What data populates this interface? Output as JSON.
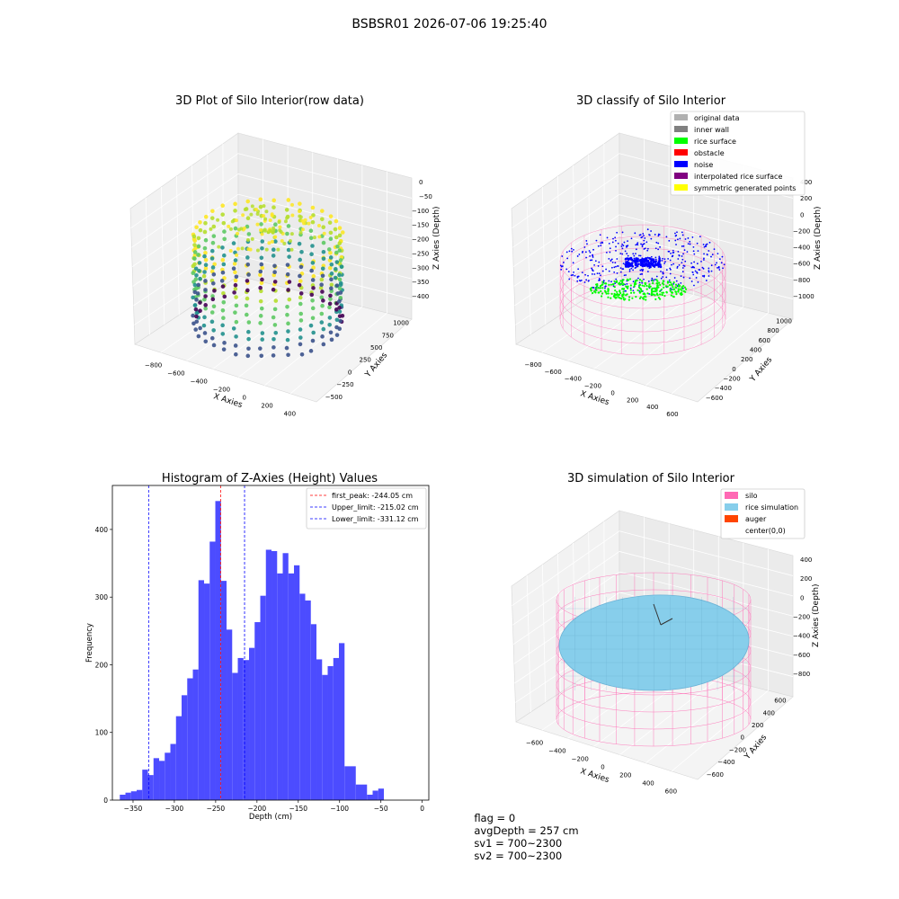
{
  "suptitle": "BSBSR01 2026-07-06 19:25:40",
  "footer": {
    "flag": "flag = 0",
    "avg_depth": "avgDepth = 257 cm",
    "sv1": "sv1 = 700~2300",
    "sv2": "sv2 = 700~2300"
  },
  "chart_data": [
    {
      "type": "scatter",
      "title": "3D Plot of Silo Interior(row data)",
      "xlabel": "X Axies",
      "ylabel": "Y Axies",
      "zlabel": "Z Axies (Depth)",
      "x_ticks": [
        "−800",
        "−600",
        "−400",
        "−200",
        "0",
        "200",
        "400"
      ],
      "y_ticks": [
        "−500",
        "−250",
        "0",
        "250",
        "500",
        "750",
        "1000"
      ],
      "z_ticks": [
        "0",
        "−50",
        "−100",
        "−150",
        "−200",
        "−250",
        "−300",
        "−350",
        "−400"
      ],
      "colormap": "viridis"
    },
    {
      "type": "scatter",
      "title": "3D classify of Silo Interior",
      "xlabel": "X Axies",
      "ylabel": "Y Axies",
      "zlabel": "Z Axies (Depth)",
      "x_ticks": [
        "−800",
        "−600",
        "−400",
        "−200",
        "0",
        "200",
        "400",
        "600"
      ],
      "y_ticks": [
        "−600",
        "−400",
        "−200",
        "0",
        "200",
        "400",
        "600",
        "800",
        "1000"
      ],
      "z_ticks": [
        "400",
        "200",
        "0",
        "−200",
        "−400",
        "−600",
        "−800",
        "−1000"
      ],
      "legend": [
        {
          "label": "original data",
          "color": "#b0b0b0"
        },
        {
          "label": "inner wall",
          "color": "#808080"
        },
        {
          "label": "rice surface",
          "color": "#00ff00"
        },
        {
          "label": "obstacle",
          "color": "#ff0000"
        },
        {
          "label": "noise",
          "color": "#0000ff"
        },
        {
          "label": "interpolated rice surface",
          "color": "#800080"
        },
        {
          "label": "symmetric generated points",
          "color": "#ffff00"
        }
      ],
      "legend_position": "top-right",
      "wire_color": "#ff69b4"
    },
    {
      "type": "bar",
      "title": "Histogram of Z-Axies (Height) Values",
      "xlabel": "Depth (cm)",
      "ylabel": "Frequency",
      "bin_start": -366,
      "bin_width": 6.8,
      "values": [
        8,
        11,
        13,
        15,
        45,
        37,
        62,
        58,
        70,
        83,
        124,
        155,
        180,
        193,
        325,
        320,
        382,
        442,
        324,
        252,
        188,
        210,
        207,
        225,
        263,
        302,
        370,
        368,
        335,
        365,
        335,
        347,
        305,
        295,
        260,
        208,
        185,
        198,
        210,
        232,
        50,
        50,
        23,
        23,
        8,
        14,
        17
      ],
      "xlim": [
        -375,
        8
      ],
      "ylim": [
        0,
        465
      ],
      "x_ticks": [
        -350,
        -300,
        -250,
        -200,
        -150,
        -100,
        -50,
        0
      ],
      "x_tick_labels": [
        "−350",
        "−300",
        "−250",
        "−200",
        "−150",
        "−100",
        "−50",
        "0"
      ],
      "y_ticks": [
        0,
        100,
        200,
        300,
        400
      ],
      "bar_color": "#4c4cff",
      "lines": [
        {
          "label": "first_peak: -244.05 cm",
          "x": -244.05,
          "color": "#ff0000"
        },
        {
          "label": "Upper_limit: -215.02 cm",
          "x": -215.02,
          "color": "#0000ff"
        },
        {
          "label": "Lower_limit: -331.12 cm",
          "x": -331.12,
          "color": "#0000ff"
        }
      ],
      "legend_position": "top-right"
    },
    {
      "type": "surface",
      "title": "3D simulation of Silo Interior",
      "xlabel": "X Axies",
      "ylabel": "Y Axies",
      "zlabel": "Z Axies (Depth)",
      "x_ticks": [
        "−600",
        "−400",
        "−200",
        "0",
        "200",
        "400",
        "600"
      ],
      "y_ticks": [
        "−600",
        "−400",
        "−200",
        "0",
        "200",
        "400",
        "600"
      ],
      "z_ticks": [
        "400",
        "200",
        "0",
        "−200",
        "−400",
        "−600",
        "−800"
      ],
      "legend": [
        {
          "label": "silo",
          "color": "#ff69b4"
        },
        {
          "label": "rice simulation",
          "color": "#87ceeb"
        },
        {
          "label": "auger",
          "color": "#ff4500"
        },
        {
          "label": "center(0,0)",
          "color": ""
        }
      ],
      "legend_position": "top-right"
    }
  ]
}
